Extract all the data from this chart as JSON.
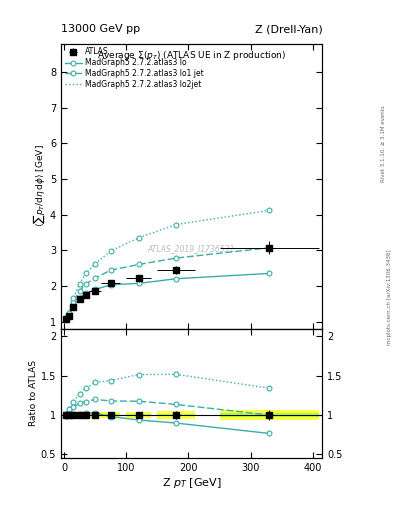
{
  "title_top_left": "13000 GeV pp",
  "title_top_right": "Z (Drell-Yan)",
  "main_title": "Average Σ(p_{T}) (ATLAS UE in Z production)",
  "ylabel_main": "<sum p_{T}/dη dϕ> [GeV]",
  "ylabel_ratio": "Ratio to ATLAS",
  "xlabel": "Z p_{T} [GeV]",
  "watermark": "ATLAS_2019_I1736531",
  "right_label": "Rivet 3.1.10, ≥ 3.1M events",
  "right_label2": "mcplots.cern.ch [arXiv:1306.3436]",
  "atlas_x": [
    2.5,
    7.5,
    15,
    25,
    35,
    50,
    75,
    120,
    180,
    330
  ],
  "atlas_y": [
    1.08,
    1.15,
    1.42,
    1.62,
    1.75,
    1.85,
    2.07,
    2.21,
    2.45,
    3.07
  ],
  "atlas_yerr": [
    0.04,
    0.04,
    0.05,
    0.05,
    0.05,
    0.06,
    0.07,
    0.09,
    0.12,
    0.18
  ],
  "atlas_xerr_lo": [
    2.5,
    2.5,
    5,
    5,
    5,
    10,
    15,
    20,
    30,
    80
  ],
  "atlas_xerr_hi": [
    2.5,
    2.5,
    5,
    5,
    5,
    10,
    15,
    20,
    30,
    80
  ],
  "lo_x": [
    2.5,
    7.5,
    15,
    25,
    35,
    50,
    75,
    120,
    180,
    330
  ],
  "lo_y": [
    1.07,
    1.15,
    1.44,
    1.65,
    1.79,
    1.9,
    2.03,
    2.07,
    2.2,
    2.35
  ],
  "lo1jet_x": [
    2.5,
    7.5,
    15,
    25,
    35,
    50,
    75,
    120,
    180,
    330
  ],
  "lo1jet_y": [
    1.1,
    1.2,
    1.56,
    1.86,
    2.05,
    2.22,
    2.44,
    2.6,
    2.78,
    3.07
  ],
  "lo2jet_x": [
    2.5,
    7.5,
    15,
    25,
    35,
    50,
    75,
    120,
    180,
    330
  ],
  "lo2jet_y": [
    1.1,
    1.24,
    1.66,
    2.06,
    2.35,
    2.62,
    2.98,
    3.35,
    3.72,
    4.12
  ],
  "color_mc": "#3aada8",
  "color_atlas_band_yellow": "#ffff44",
  "color_atlas_band_green": "#aaff44",
  "ylim_main": [
    0.8,
    8.8
  ],
  "ylim_ratio": [
    0.45,
    2.1
  ],
  "xlim": [
    -5,
    415
  ]
}
